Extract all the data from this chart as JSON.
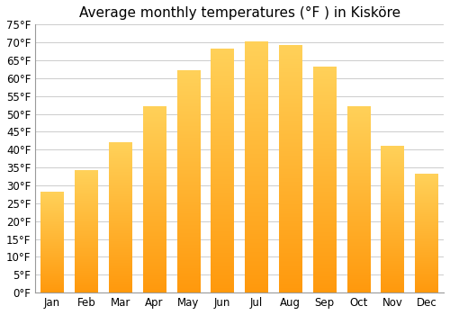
{
  "title": "Average monthly temperatures (°F ) in Kisköre",
  "months": [
    "Jan",
    "Feb",
    "Mar",
    "Apr",
    "May",
    "Jun",
    "Jul",
    "Aug",
    "Sep",
    "Oct",
    "Nov",
    "Dec"
  ],
  "values": [
    28,
    34,
    42,
    52,
    62,
    68,
    70,
    69,
    63,
    52,
    41,
    33
  ],
  "bar_color": "#FFAA00",
  "bar_color_light": "#FFD060",
  "ylim": [
    0,
    75
  ],
  "yticks": [
    0,
    5,
    10,
    15,
    20,
    25,
    30,
    35,
    40,
    45,
    50,
    55,
    60,
    65,
    70,
    75
  ],
  "ytick_labels": [
    "0°F",
    "5°F",
    "10°F",
    "15°F",
    "20°F",
    "25°F",
    "30°F",
    "35°F",
    "40°F",
    "45°F",
    "50°F",
    "55°F",
    "60°F",
    "65°F",
    "70°F",
    "75°F"
  ],
  "background_color": "#ffffff",
  "grid_color": "#cccccc",
  "title_fontsize": 11,
  "tick_fontsize": 8.5
}
